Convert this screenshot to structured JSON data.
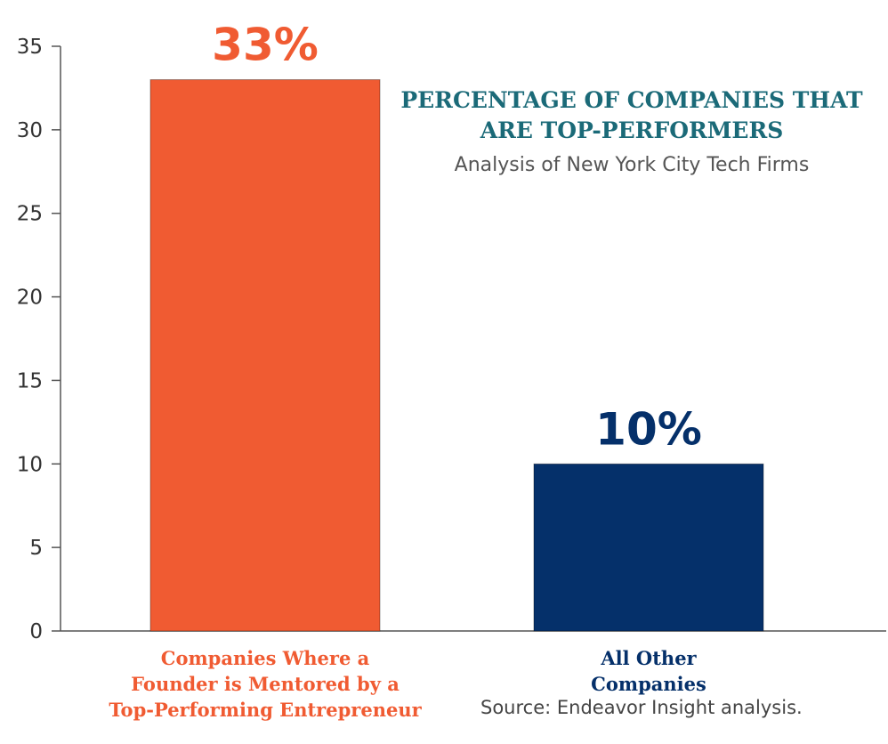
{
  "chart_data": {
    "type": "bar",
    "title_lines": [
      "PERCENTAGE OF COMPANIES THAT",
      "ARE TOP-PERFORMERS"
    ],
    "subtitle": "Analysis of New York City Tech Firms",
    "source": "Source: Endeavor Insight analysis.",
    "ylim": [
      0,
      35
    ],
    "yticks": [
      0,
      5,
      10,
      15,
      20,
      25,
      30,
      35
    ],
    "grid": false,
    "bars": [
      {
        "value": 33,
        "value_label": "33%",
        "label_lines": [
          "Companies Where a",
          "Founder is Mentored by a",
          "Top-Performing Entrepreneur"
        ],
        "color": "#f05b32"
      },
      {
        "value": 10,
        "value_label": "10%",
        "label_lines": [
          "All Other",
          "Companies"
        ],
        "color": "#05306a"
      }
    ]
  }
}
